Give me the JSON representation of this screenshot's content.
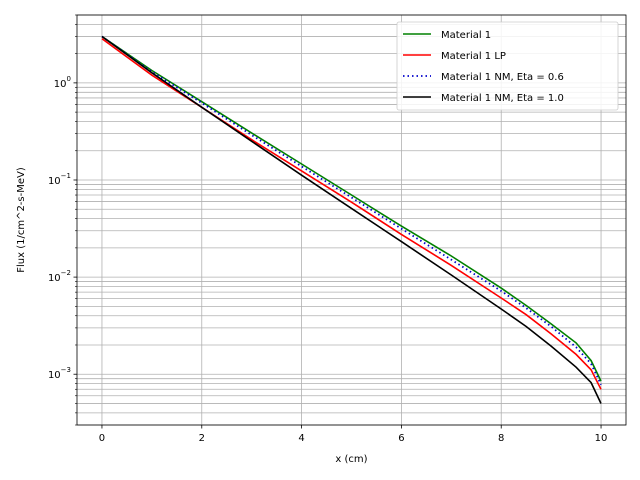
{
  "chart_data": {
    "type": "line",
    "xlabel": "x (cm)",
    "ylabel": "Flux (1/cm^2-s-MeV)",
    "yscale": "log",
    "xlim": [
      -0.5,
      10.5
    ],
    "ylim": [
      0.0003,
      5.0
    ],
    "grid": "major and minor",
    "legend_position": "upper right",
    "x_ticks": [
      0,
      2,
      4,
      6,
      8,
      10
    ],
    "x_tick_labels": [
      "0",
      "2",
      "4",
      "6",
      "8",
      "10"
    ],
    "y_ticks": [
      {
        "value": 0.001,
        "base": "10",
        "exp": "−3"
      },
      {
        "value": 0.01,
        "base": "10",
        "exp": "−2"
      },
      {
        "value": 0.1,
        "base": "10",
        "exp": "−1"
      },
      {
        "value": 1,
        "base": "10",
        "exp": "0"
      }
    ],
    "series": [
      {
        "name": "Material 1",
        "color": "#008000",
        "dash": "solid",
        "x": [
          0,
          1,
          2,
          3,
          4,
          5,
          6,
          7,
          8,
          8.5,
          9,
          9.5,
          9.8,
          10
        ],
        "y": [
          3.0,
          1.34,
          0.64,
          0.305,
          0.146,
          0.07,
          0.0335,
          0.0165,
          0.0077,
          0.0051,
          0.0033,
          0.0021,
          0.00138,
          0.00085
        ]
      },
      {
        "name": "Material 1 LP",
        "color": "#ff0000",
        "dash": "solid",
        "x": [
          0,
          1,
          2,
          3,
          4,
          5,
          6,
          7,
          8,
          8.5,
          9,
          9.5,
          9.8,
          10
        ],
        "y": [
          2.85,
          1.2,
          0.56,
          0.26,
          0.124,
          0.059,
          0.0275,
          0.0132,
          0.0061,
          0.0041,
          0.0026,
          0.0016,
          0.00111,
          0.0007
        ]
      },
      {
        "name": "Material 1 NM, Eta = 0.6",
        "color": "#0000cc",
        "dash": "dotted",
        "x": [
          0,
          1,
          2,
          3,
          4,
          5,
          6,
          7,
          8,
          8.5,
          9,
          9.5,
          9.8,
          10
        ],
        "y": [
          3.0,
          1.3,
          0.62,
          0.29,
          0.138,
          0.066,
          0.0315,
          0.0151,
          0.0072,
          0.0048,
          0.0031,
          0.0019,
          0.00128,
          0.00078
        ]
      },
      {
        "name": "Material 1 NM, Eta = 1.0",
        "color": "#000000",
        "dash": "solid",
        "x": [
          0,
          1,
          2,
          3,
          4,
          5,
          6,
          7,
          8,
          8.5,
          9,
          9.5,
          9.8,
          10
        ],
        "y": [
          3.0,
          1.27,
          0.56,
          0.25,
          0.112,
          0.051,
          0.0232,
          0.0105,
          0.0047,
          0.0031,
          0.00195,
          0.00118,
          0.00082,
          0.0005
        ]
      }
    ]
  }
}
